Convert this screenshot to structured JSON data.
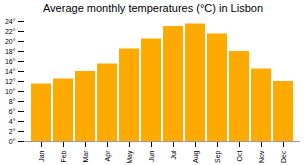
{
  "chart_data": {
    "type": "bar",
    "title": "Average monthly temperatures (°C) in Lisbon",
    "categories": [
      "Jan",
      "Feb",
      "Mar",
      "Apr",
      "May",
      "Jun",
      "Jul",
      "Aug",
      "Sep",
      "Oct",
      "Nov",
      "Dec"
    ],
    "values": [
      11.5,
      12.5,
      14.0,
      15.5,
      18.5,
      20.5,
      23.0,
      23.5,
      21.5,
      18.0,
      14.5,
      12.0
    ],
    "color": "#FFAA00",
    "ylim": [
      0,
      24
    ],
    "yticks": [
      {
        "value": 0,
        "label": "0°"
      },
      {
        "value": 2,
        "label": "2°"
      },
      {
        "value": 4,
        "label": "4°"
      },
      {
        "value": 6,
        "label": "6°"
      },
      {
        "value": 8,
        "label": "8°"
      },
      {
        "value": 10,
        "label": "10°"
      },
      {
        "value": 12,
        "label": "12°"
      },
      {
        "value": 14,
        "label": "14°"
      },
      {
        "value": 16,
        "label": "16°"
      },
      {
        "value": 18,
        "label": "18°"
      },
      {
        "value": 20,
        "label": "20°"
      },
      {
        "value": 22,
        "label": "22°"
      },
      {
        "value": 24,
        "label": "24°"
      }
    ],
    "grid": false
  }
}
